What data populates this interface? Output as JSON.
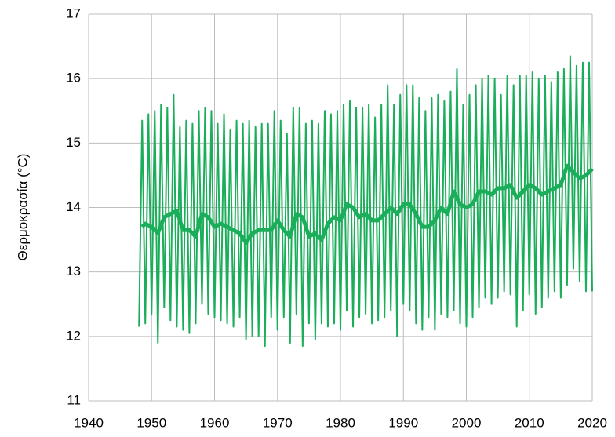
{
  "chart_data": {
    "type": "line",
    "y_label": "Θερμοκρασία (°C)",
    "xlim": [
      1940,
      2020
    ],
    "xticks": [
      1940,
      1950,
      1960,
      1970,
      1980,
      1990,
      2000,
      2010,
      2020
    ],
    "ylim": [
      11,
      17
    ],
    "yticks": [
      11,
      12,
      13,
      14,
      15,
      16,
      17
    ],
    "grid": true,
    "series": [
      {
        "color": "#1aae5a",
        "width": 2,
        "x": [
          1948,
          1948.5,
          1949,
          1949.5,
          1950,
          1950.5,
          1951,
          1951.5,
          1952,
          1952.5,
          1953,
          1953.5,
          1954,
          1954.5,
          1955,
          1955.5,
          1956,
          1956.5,
          1957,
          1957.5,
          1958,
          1958.5,
          1959,
          1959.5,
          1960,
          1960.5,
          1961,
          1961.5,
          1962,
          1962.5,
          1963,
          1963.5,
          1964,
          1964.5,
          1965,
          1965.5,
          1966,
          1966.5,
          1967,
          1967.5,
          1968,
          1968.5,
          1969,
          1969.5,
          1970,
          1970.5,
          1971,
          1971.5,
          1972,
          1972.5,
          1973,
          1973.5,
          1974,
          1974.5,
          1975,
          1975.5,
          1976,
          1976.5,
          1977,
          1977.5,
          1978,
          1978.5,
          1979,
          1979.5,
          1980,
          1980.5,
          1981,
          1981.5,
          1982,
          1982.5,
          1983,
          1983.5,
          1984,
          1984.5,
          1985,
          1985.5,
          1986,
          1986.5,
          1987,
          1987.5,
          1988,
          1988.5,
          1989,
          1989.5,
          1990,
          1990.5,
          1991,
          1991.5,
          1992,
          1992.5,
          1993,
          1993.5,
          1994,
          1994.5,
          1995,
          1995.5,
          1996,
          1996.5,
          1997,
          1997.5,
          1998,
          1998.5,
          1999,
          1999.5,
          2000,
          2000.5,
          2001,
          2001.5,
          2002,
          2002.5,
          2003,
          2003.5,
          2004,
          2004.5,
          2005,
          2005.5,
          2006,
          2006.5,
          2007,
          2007.5,
          2008,
          2008.5,
          2009,
          2009.5,
          2010,
          2010.5,
          2011,
          2011.5,
          2012,
          2012.5,
          2013,
          2013.5,
          2014,
          2014.5,
          2015,
          2015.5,
          2016,
          2016.5,
          2017,
          2017.5,
          2018,
          2018.5,
          2019,
          2019.5,
          2020
        ],
        "values": [
          12.15,
          15.35,
          12.2,
          15.45,
          12.35,
          15.5,
          11.9,
          15.6,
          12.45,
          15.55,
          12.25,
          15.75,
          12.15,
          15.25,
          12.1,
          15.35,
          12.05,
          15.3,
          12.2,
          15.5,
          12.5,
          15.55,
          12.35,
          15.5,
          12.3,
          15.3,
          12.25,
          15.45,
          12.2,
          15.2,
          12.15,
          15.35,
          12.3,
          15.3,
          11.95,
          15.35,
          12.0,
          15.25,
          12.0,
          15.3,
          11.85,
          15.3,
          12.3,
          15.5,
          12.1,
          15.35,
          12.3,
          15.15,
          11.9,
          15.55,
          12.35,
          15.55,
          11.85,
          15.3,
          12.2,
          15.35,
          11.95,
          15.3,
          12.2,
          15.5,
          12.15,
          15.45,
          12.2,
          15.5,
          12.1,
          15.6,
          12.4,
          15.65,
          12.15,
          15.55,
          12.3,
          15.55,
          12.35,
          15.6,
          12.2,
          15.4,
          12.25,
          15.6,
          12.3,
          15.9,
          12.4,
          15.6,
          12.0,
          15.75,
          12.5,
          15.9,
          12.4,
          15.9,
          12.2,
          15.7,
          12.1,
          15.5,
          12.3,
          15.7,
          12.1,
          15.75,
          12.35,
          15.65,
          12.3,
          15.8,
          12.4,
          16.15,
          12.2,
          15.6,
          12.15,
          15.75,
          12.3,
          15.9,
          12.45,
          16.0,
          12.6,
          16.05,
          12.5,
          16.0,
          12.6,
          15.75,
          12.7,
          16.05,
          12.65,
          15.9,
          12.15,
          16.05,
          12.4,
          16.05,
          12.65,
          16.1,
          12.35,
          16.0,
          12.45,
          16.05,
          12.6,
          15.95,
          12.7,
          16.1,
          12.6,
          16.15,
          12.8,
          16.35,
          13.05,
          16.2,
          12.85,
          16.25,
          12.7,
          16.25,
          12.7
        ]
      },
      {
        "color": "#1aae5a",
        "width": 5,
        "x": [
          1948.5,
          1949,
          1950,
          1951,
          1952,
          1953,
          1954,
          1955,
          1956,
          1957,
          1958,
          1959,
          1960,
          1961,
          1962,
          1963,
          1964,
          1965,
          1966,
          1967,
          1968,
          1969,
          1970,
          1971,
          1972,
          1973,
          1974,
          1975,
          1976,
          1977,
          1978,
          1979,
          1980,
          1981,
          1982,
          1983,
          1984,
          1985,
          1986,
          1987,
          1988,
          1989,
          1990,
          1991,
          1992,
          1993,
          1994,
          1995,
          1996,
          1997,
          1998,
          1999,
          2000,
          2001,
          2002,
          2003,
          2004,
          2005,
          2006,
          2007,
          2008,
          2009,
          2010,
          2011,
          2012,
          2013,
          2014,
          2015,
          2016,
          2017,
          2018,
          2019,
          2020
        ],
        "values": [
          13.7,
          13.75,
          13.7,
          13.6,
          13.85,
          13.9,
          13.95,
          13.65,
          13.65,
          13.55,
          13.9,
          13.85,
          13.7,
          13.75,
          13.7,
          13.65,
          13.6,
          13.45,
          13.6,
          13.65,
          13.65,
          13.65,
          13.8,
          13.65,
          13.55,
          13.9,
          13.85,
          13.55,
          13.6,
          13.5,
          13.75,
          13.85,
          13.8,
          14.05,
          14.0,
          13.85,
          13.9,
          13.8,
          13.8,
          13.9,
          14.0,
          13.9,
          14.05,
          14.05,
          13.9,
          13.7,
          13.7,
          13.8,
          14.0,
          13.9,
          14.25,
          14.05,
          14.0,
          14.05,
          14.25,
          14.25,
          14.2,
          14.3,
          14.3,
          14.35,
          14.15,
          14.25,
          14.35,
          14.3,
          14.2,
          14.25,
          14.3,
          14.35,
          14.65,
          14.55,
          14.45,
          14.5,
          14.6
        ]
      }
    ]
  }
}
